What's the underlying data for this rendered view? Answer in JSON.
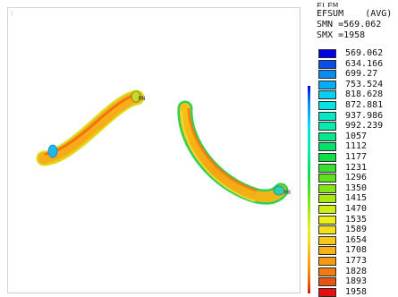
{
  "legend": {
    "cut_text": "ELEM",
    "title": "EFSUM",
    "avg_label": "(AVG)",
    "smn": "SMN =569.062",
    "smx": "SMX =1958",
    "values": [
      "569.062",
      "634.166",
      "699.27",
      "753.524",
      "818.628",
      "872.881",
      "937.986",
      "992.239",
      "1057",
      "1112",
      "1177",
      "1231",
      "1296",
      "1350",
      "1415",
      "1470",
      "1535",
      "1589",
      "1654",
      "1708",
      "1773",
      "1828",
      "1893",
      "1958"
    ],
    "colors": [
      "#0000e6",
      "#0a4ee8",
      "#0a8df2",
      "#00aef8",
      "#00d2f0",
      "#00e4e4",
      "#00e8c8",
      "#00ecb0",
      "#00e88c",
      "#00e26a",
      "#10de48",
      "#38de30",
      "#5ce21c",
      "#84e614",
      "#a8ea10",
      "#ccee10",
      "#e8f014",
      "#f4e018",
      "#f8c818",
      "#f8b014",
      "#f89a10",
      "#f07c10",
      "#e8540e",
      "#e61010"
    ]
  },
  "viewport": {
    "mx_label": "MX",
    "mn_label": "MN"
  }
}
